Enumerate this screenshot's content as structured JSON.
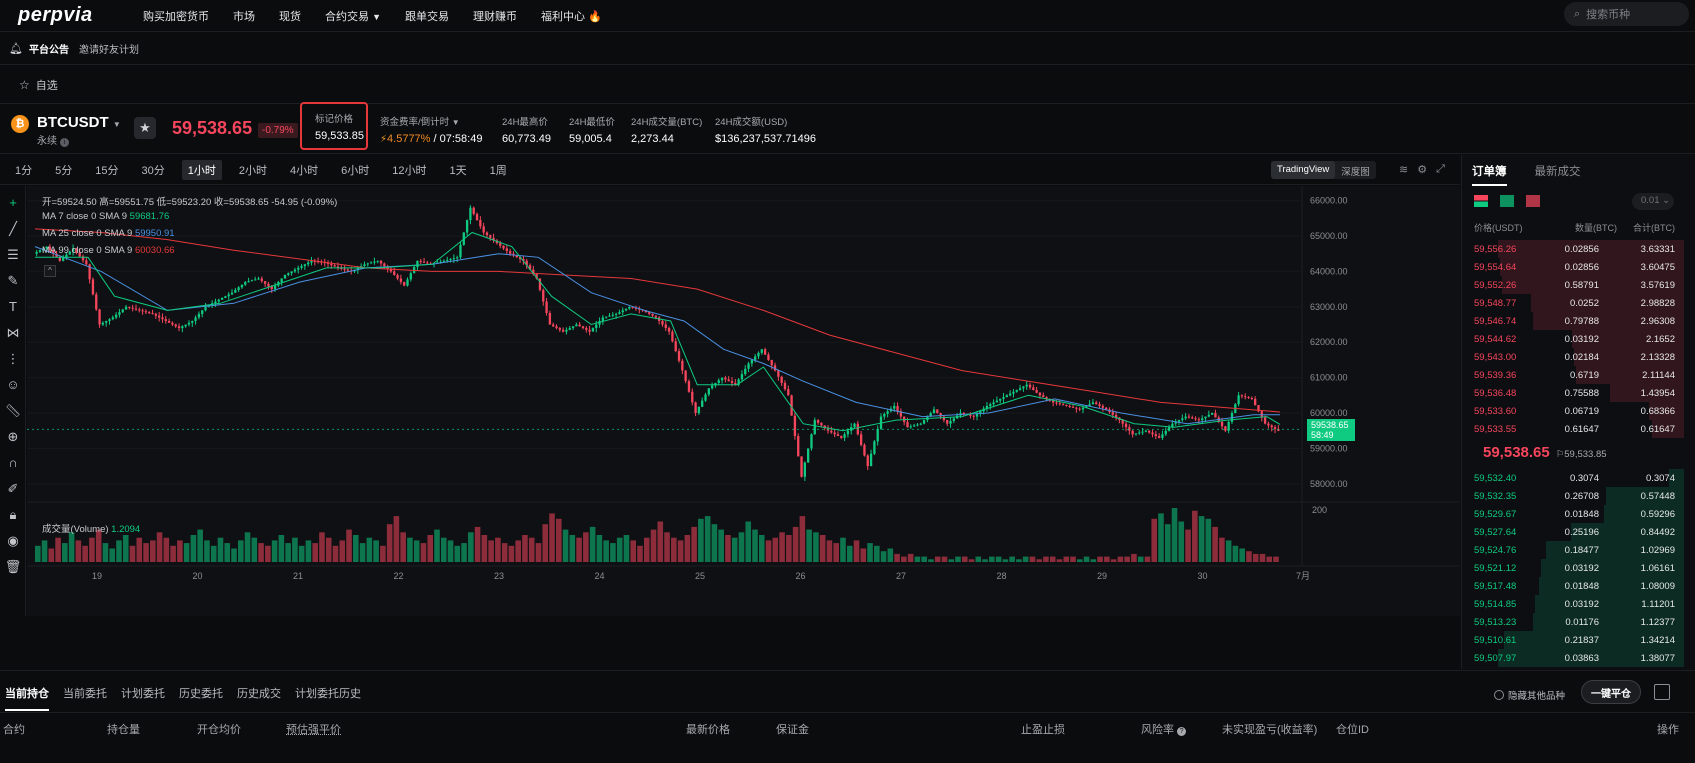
{
  "nav": {
    "brand": "perpvia",
    "links": [
      "购买加密货币",
      "市场",
      "现货",
      "合约交易",
      "跟单交易",
      "理财赚币",
      "福利中心"
    ],
    "search_placeholder": "搜索币种"
  },
  "announcement": {
    "title": "平台公告",
    "text": "邀请好友计划"
  },
  "favorites": {
    "label": "自选"
  },
  "ticker": {
    "symbol": "BTCUSDT",
    "coin_glyph": "₿",
    "contract": "永续",
    "last_price": "59,538.65",
    "change": "-0.79%",
    "mark_price_label": "标记价格",
    "mark_price": "59,533.85",
    "funding_label": "资金费率/倒计时",
    "funding_rate": "4.5777%",
    "funding_countdown": "/ 07:58:49",
    "high_label": "24H最高价",
    "high": "60,773.49",
    "low_label": "24H最低价",
    "low": "59,005.4",
    "vol_btc_label": "24H成交量(BTC)",
    "vol_btc": "2,273.44",
    "vol_usd_label": "24H成交额(USD)",
    "vol_usd": "$136,237,537.71496"
  },
  "timeframes": [
    "1分",
    "5分",
    "15分",
    "30分",
    "1小时",
    "2小时",
    "4小时",
    "6小时",
    "12小时",
    "1天",
    "1周"
  ],
  "active_timeframe": "1小时",
  "chart_views": {
    "tradingview": "TradingView",
    "depth": "深度图"
  },
  "chart_legend": {
    "ohlc": "开=59524.50 高=59551.75 低=59523.20 收=59538.65 -54.95 (-0.09%)",
    "ma7_label": "MA 7 close 0 SMA 9",
    "ma7_value": "59681.76",
    "ma25_label": "MA 25 close 0 SMA 9",
    "ma25_value": "59950.91",
    "ma99_label": "MA 99 close 0 SMA 9",
    "ma99_value": "60030.66",
    "volume_label": "成交量(Volume)",
    "volume_value": "1.2094",
    "last_tag_price": "59538.65",
    "last_tag_time": "58:49",
    "volume_axis_tick": "200"
  },
  "chart_data": {
    "type": "candlestick",
    "x_ticks": [
      "19",
      "20",
      "21",
      "22",
      "23",
      "24",
      "25",
      "26",
      "27",
      "28",
      "29",
      "30",
      "7月"
    ],
    "y_ticks": [
      66000,
      65000,
      64000,
      63000,
      62000,
      61000,
      60000,
      59000,
      58000
    ],
    "y_tick_labels": [
      "66000.00",
      "65000.00",
      "64000.00",
      "63000.00",
      "62000.00",
      "61000.00",
      "60000.00",
      "59000.00",
      "58000.00"
    ],
    "ylim": [
      57600,
      66300
    ],
    "price_path": [
      [
        0,
        64500
      ],
      [
        2,
        64700
      ],
      [
        4,
        64300
      ],
      [
        6,
        64650
      ],
      [
        8,
        64200
      ],
      [
        10,
        62500
      ],
      [
        12,
        62700
      ],
      [
        14,
        63000
      ],
      [
        16,
        62900
      ],
      [
        18,
        62800
      ],
      [
        20,
        62600
      ],
      [
        22,
        62400
      ],
      [
        24,
        62600
      ],
      [
        26,
        63000
      ],
      [
        28,
        63200
      ],
      [
        30,
        63400
      ],
      [
        32,
        63700
      ],
      [
        34,
        63800
      ],
      [
        36,
        63500
      ],
      [
        38,
        63900
      ],
      [
        40,
        64100
      ],
      [
        42,
        64300
      ],
      [
        44,
        64250
      ],
      [
        46,
        64100
      ],
      [
        48,
        64000
      ],
      [
        50,
        64200
      ],
      [
        52,
        64300
      ],
      [
        54,
        64000
      ],
      [
        56,
        63600
      ],
      [
        58,
        64300
      ],
      [
        60,
        64200
      ],
      [
        62,
        64300
      ],
      [
        64,
        64400
      ],
      [
        66,
        65800
      ],
      [
        68,
        65100
      ],
      [
        70,
        64800
      ],
      [
        72,
        64500
      ],
      [
        74,
        64300
      ],
      [
        76,
        63800
      ],
      [
        78,
        62500
      ],
      [
        80,
        62300
      ],
      [
        82,
        62500
      ],
      [
        84,
        62300
      ],
      [
        86,
        62700
      ],
      [
        88,
        62800
      ],
      [
        90,
        63000
      ],
      [
        92,
        62900
      ],
      [
        94,
        62700
      ],
      [
        96,
        62300
      ],
      [
        98,
        61200
      ],
      [
        100,
        60000
      ],
      [
        102,
        60700
      ],
      [
        104,
        61000
      ],
      [
        106,
        60800
      ],
      [
        108,
        61400
      ],
      [
        110,
        61800
      ],
      [
        112,
        61200
      ],
      [
        114,
        60500
      ],
      [
        116,
        58200
      ],
      [
        118,
        59800
      ],
      [
        120,
        59500
      ],
      [
        122,
        59300
      ],
      [
        124,
        59700
      ],
      [
        126,
        58500
      ],
      [
        128,
        59900
      ],
      [
        130,
        60200
      ],
      [
        132,
        59600
      ],
      [
        134,
        59700
      ],
      [
        136,
        60100
      ],
      [
        138,
        59700
      ],
      [
        140,
        60000
      ],
      [
        142,
        59900
      ],
      [
        144,
        60200
      ],
      [
        146,
        60400
      ],
      [
        148,
        60600
      ],
      [
        150,
        60800
      ],
      [
        152,
        60500
      ],
      [
        154,
        60300
      ],
      [
        156,
        60200
      ],
      [
        158,
        60100
      ],
      [
        160,
        60300
      ],
      [
        162,
        60100
      ],
      [
        164,
        59800
      ],
      [
        166,
        59400
      ],
      [
        168,
        59500
      ],
      [
        170,
        59300
      ],
      [
        172,
        59700
      ],
      [
        174,
        59900
      ],
      [
        176,
        59800
      ],
      [
        178,
        60000
      ],
      [
        180,
        59500
      ],
      [
        182,
        60500
      ],
      [
        184,
        60400
      ],
      [
        186,
        59700
      ],
      [
        188,
        59500
      ]
    ],
    "ma7_path": [
      [
        0,
        64400
      ],
      [
        8,
        64400
      ],
      [
        12,
        63300
      ],
      [
        20,
        62900
      ],
      [
        28,
        63100
      ],
      [
        36,
        63600
      ],
      [
        44,
        64100
      ],
      [
        52,
        64100
      ],
      [
        60,
        64200
      ],
      [
        66,
        65100
      ],
      [
        72,
        64700
      ],
      [
        78,
        63300
      ],
      [
        84,
        62500
      ],
      [
        90,
        62800
      ],
      [
        96,
        62600
      ],
      [
        100,
        60800
      ],
      [
        106,
        60800
      ],
      [
        110,
        61300
      ],
      [
        116,
        59700
      ],
      [
        122,
        59500
      ],
      [
        130,
        59800
      ],
      [
        140,
        59900
      ],
      [
        150,
        60500
      ],
      [
        158,
        60200
      ],
      [
        166,
        59700
      ],
      [
        172,
        59600
      ],
      [
        180,
        59800
      ],
      [
        186,
        59900
      ],
      [
        188,
        59680
      ]
    ],
    "ma25_path": [
      [
        0,
        64700
      ],
      [
        10,
        64000
      ],
      [
        20,
        62900
      ],
      [
        30,
        63100
      ],
      [
        40,
        63700
      ],
      [
        50,
        64100
      ],
      [
        60,
        64200
      ],
      [
        70,
        64500
      ],
      [
        76,
        64400
      ],
      [
        84,
        63400
      ],
      [
        92,
        62900
      ],
      [
        98,
        62600
      ],
      [
        104,
        61800
      ],
      [
        110,
        61400
      ],
      [
        116,
        60900
      ],
      [
        124,
        60300
      ],
      [
        134,
        59900
      ],
      [
        144,
        60000
      ],
      [
        154,
        60400
      ],
      [
        164,
        60000
      ],
      [
        174,
        59700
      ],
      [
        184,
        59950
      ],
      [
        188,
        59950
      ]
    ],
    "ma99_path": [
      [
        0,
        65200
      ],
      [
        10,
        65100
      ],
      [
        20,
        64900
      ],
      [
        30,
        64600
      ],
      [
        40,
        64350
      ],
      [
        50,
        64100
      ],
      [
        60,
        64000
      ],
      [
        70,
        64000
      ],
      [
        80,
        63900
      ],
      [
        90,
        63800
      ],
      [
        100,
        63500
      ],
      [
        110,
        62900
      ],
      [
        120,
        62200
      ],
      [
        130,
        61700
      ],
      [
        140,
        61200
      ],
      [
        150,
        60900
      ],
      [
        160,
        60600
      ],
      [
        170,
        60300
      ],
      [
        180,
        60150
      ],
      [
        188,
        60030
      ]
    ],
    "volume_series": [
      6,
      8,
      5,
      9,
      7,
      11,
      8,
      6,
      9,
      12,
      7,
      5,
      8,
      10,
      6,
      9,
      7,
      8,
      11,
      9,
      6,
      8,
      7,
      10,
      12,
      8,
      6,
      9,
      7,
      5,
      8,
      11,
      9,
      7,
      6,
      8,
      10,
      7,
      9,
      6,
      8,
      7,
      11,
      9,
      6,
      8,
      12,
      10,
      7,
      9,
      8,
      6,
      14,
      17,
      11,
      9,
      8,
      7,
      10,
      12,
      9,
      8,
      6,
      7,
      11,
      13,
      10,
      8,
      9,
      7,
      6,
      8,
      10,
      9,
      7,
      14,
      18,
      16,
      12,
      10,
      9,
      11,
      13,
      10,
      8,
      7,
      9,
      10,
      8,
      6,
      9,
      12,
      15,
      11,
      9,
      8,
      10,
      13,
      16,
      17,
      14,
      12,
      10,
      9,
      11,
      15,
      12,
      10,
      8,
      9,
      11,
      10,
      13,
      17,
      12,
      11,
      10,
      8,
      7,
      9,
      6,
      8,
      5,
      7,
      6,
      4,
      5,
      3,
      2,
      3,
      2,
      2,
      1,
      2,
      2,
      1,
      2,
      2,
      1,
      2,
      1,
      2,
      2,
      1,
      2,
      1,
      2,
      2,
      1,
      2,
      2,
      1,
      2,
      2,
      1,
      2,
      1,
      2,
      2,
      1,
      2,
      2,
      3,
      2,
      2,
      16,
      18,
      14,
      20,
      15,
      12,
      19,
      17,
      16,
      13,
      9,
      8,
      6,
      5,
      4,
      3,
      3,
      2,
      2
    ],
    "last_price": 59538.65
  },
  "orderbook": {
    "tabs": [
      "订单簿",
      "最新成交"
    ],
    "precision": "0.01",
    "headers": [
      "价格(USDT)",
      "数量(BTC)",
      "合计(BTC)"
    ],
    "asks": [
      {
        "p": "59,556.26",
        "q": "0.02856",
        "c": "3.63331",
        "d": 1.0
      },
      {
        "p": "59,554.64",
        "q": "0.02856",
        "c": "3.60475",
        "d": 0.99
      },
      {
        "p": "59,552.26",
        "q": "0.58791",
        "c": "3.57619",
        "d": 0.98
      },
      {
        "p": "59,548.77",
        "q": "0.0252",
        "c": "2.98828",
        "d": 0.82
      },
      {
        "p": "59,546.74",
        "q": "0.79788",
        "c": "2.96308",
        "d": 0.81
      },
      {
        "p": "59,544.62",
        "q": "0.03192",
        "c": "2.1652",
        "d": 0.6
      },
      {
        "p": "59,543.00",
        "q": "0.02184",
        "c": "2.13328",
        "d": 0.59
      },
      {
        "p": "59,539.36",
        "q": "0.6719",
        "c": "2.11144",
        "d": 0.58
      },
      {
        "p": "59,536.48",
        "q": "0.75588",
        "c": "1.43954",
        "d": 0.4
      },
      {
        "p": "59,533.60",
        "q": "0.06719",
        "c": "0.68366",
        "d": 0.19
      },
      {
        "p": "59,533.55",
        "q": "0.61647",
        "c": "0.61647",
        "d": 0.17
      }
    ],
    "mid_price": "59,538.65",
    "mid_mark": "59,533.85",
    "bids": [
      {
        "p": "59,532.40",
        "q": "0.3074",
        "c": "0.3074",
        "d": 0.08
      },
      {
        "p": "59,532.35",
        "q": "0.26708",
        "c": "0.57448",
        "d": 0.42
      },
      {
        "p": "59,529.67",
        "q": "0.01848",
        "c": "0.59296",
        "d": 0.43
      },
      {
        "p": "59,527.64",
        "q": "0.25196",
        "c": "0.84492",
        "d": 0.61
      },
      {
        "p": "59,524.76",
        "q": "0.18477",
        "c": "1.02969",
        "d": 0.74
      },
      {
        "p": "59,521.12",
        "q": "0.03192",
        "c": "1.06161",
        "d": 0.77
      },
      {
        "p": "59,517.48",
        "q": "0.01848",
        "c": "1.08009",
        "d": 0.78
      },
      {
        "p": "59,514.85",
        "q": "0.03192",
        "c": "1.11201",
        "d": 0.8
      },
      {
        "p": "59,513.23",
        "q": "0.01176",
        "c": "1.12377",
        "d": 0.81
      },
      {
        "p": "59,510.61",
        "q": "0.21837",
        "c": "1.34214",
        "d": 0.97
      },
      {
        "p": "59,507.97",
        "q": "0.03863",
        "c": "1.38077",
        "d": 1.0
      }
    ]
  },
  "bottom": {
    "tabs": [
      "当前持仓",
      "当前委托",
      "计划委托",
      "历史委托",
      "历史成交",
      "计划委托历史"
    ],
    "hide_other": "隐藏其他品种",
    "close_all": "一键平仓",
    "columns": [
      "合约",
      "持仓量",
      "开仓均价",
      "预估强平价",
      "最新价格",
      "保证金",
      "止盈止损",
      "风险率",
      "未实现盈亏(收益率)",
      "仓位ID",
      "操作"
    ]
  },
  "colors": {
    "up": "#0ecb81",
    "down": "#f6465d",
    "ma7": "#0ecb81",
    "ma25": "#4a90e2",
    "ma99": "#e5383b"
  }
}
